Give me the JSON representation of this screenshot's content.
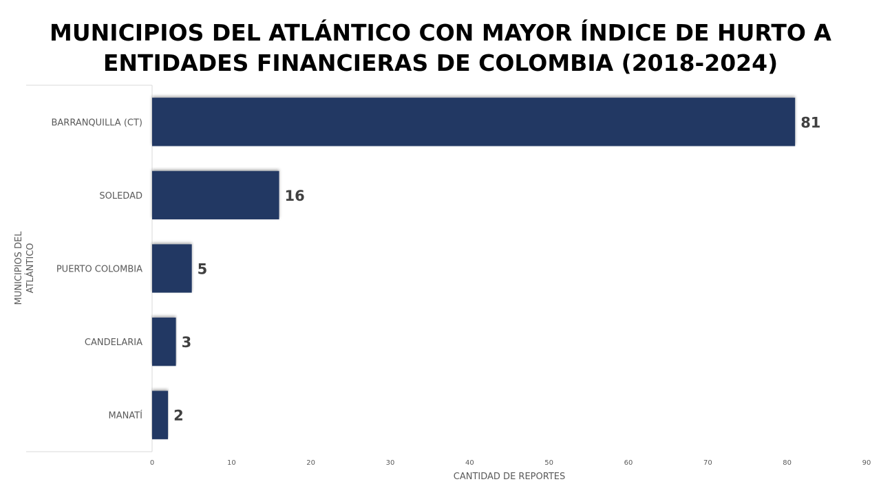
{
  "chart_data": {
    "type": "bar",
    "orientation": "horizontal",
    "title_lines": [
      "MUNICIPIOS DEL ATLÁNTICO CON MAYOR ÍNDICE DE HURTO A",
      "ENTIDADES FINANCIERAS DE COLOMBIA (2018-2024)"
    ],
    "ylabel_lines": [
      "MUNICIPIOS DEL",
      "ATLÁNTICO"
    ],
    "xlabel": "CANTIDAD DE REPORTES",
    "categories": [
      "BARRANQUILLA (CT)",
      "SOLEDAD",
      "PUERTO COLOMBIA",
      "CANDELARIA",
      "MANATÍ"
    ],
    "values": [
      81,
      16,
      5,
      3,
      2
    ],
    "xlim": [
      0,
      90
    ],
    "xticks": [
      0,
      10,
      20,
      30,
      40,
      50,
      60,
      70,
      80,
      90
    ],
    "grid": false,
    "legend": "none",
    "bar_color": "#203864",
    "data_labels": true
  }
}
